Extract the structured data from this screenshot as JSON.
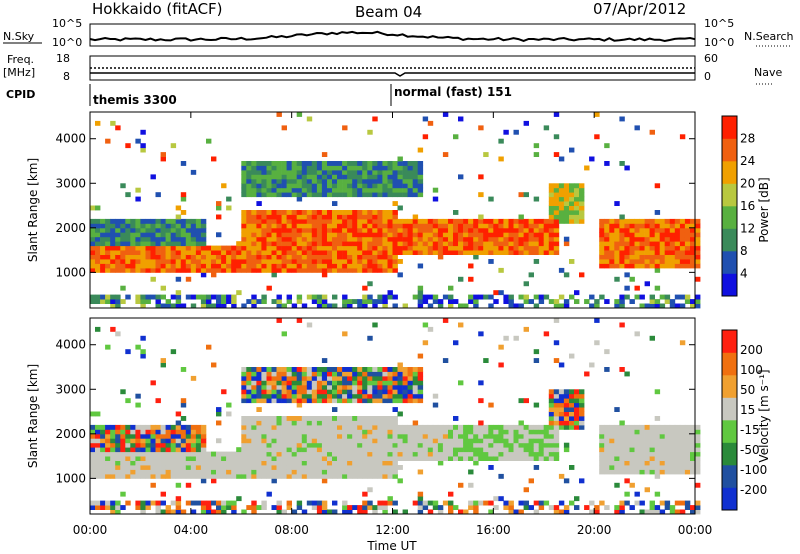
{
  "header": {
    "station": "Hokkaido (fitACF)",
    "beam": "Beam 04",
    "date": "07/Apr/2012"
  },
  "top_panels": {
    "nsky": {
      "label": "N.Sky",
      "ticks": [
        "10^5",
        "10^0"
      ],
      "right_ticks": [
        "10^5",
        "10^0"
      ],
      "right_label": "N.Search"
    },
    "freq": {
      "label_line1": "Freq.",
      "label_line2": "[MHz]",
      "ticks": [
        "18",
        "8"
      ],
      "right_ticks": [
        "60",
        "0"
      ],
      "right_label": "Nave"
    },
    "cpid": {
      "label": "CPID",
      "modes": [
        "themis 3300",
        "normal (fast) 151"
      ]
    }
  },
  "colors": {
    "power": [
      "#1010e0",
      "#2050b0",
      "#3a8a5a",
      "#58b040",
      "#b8c840",
      "#f0a000",
      "#f06010",
      "#ff2000"
    ],
    "velocity": [
      "#1030d0",
      "#2050a0",
      "#2a8a3a",
      "#60c840",
      "#c8c8c0",
      "#f0a030",
      "#f07010",
      "#ff2010"
    ]
  },
  "chart_data": [
    {
      "type": "heatmap",
      "panel": "power",
      "ylabel": "Slant Range [km]",
      "ylim": [
        200,
        4600
      ],
      "yticks": [
        "1000",
        "2000",
        "3000",
        "4000"
      ],
      "xlim_hours": [
        0,
        24
      ],
      "colorbar_label": "Power [dB]",
      "colorbar_ticks": [
        "28",
        "24",
        "20",
        "16",
        "12",
        "8",
        "4"
      ],
      "bands": [
        {
          "t0": 0,
          "t1": 6,
          "r0": 900,
          "r1": 1600,
          "level": "strong"
        },
        {
          "t0": 0,
          "t1": 4.5,
          "r0": 1600,
          "r1": 2200,
          "level": "weak"
        },
        {
          "t0": 6,
          "t1": 12,
          "r0": 900,
          "r1": 2400,
          "level": "strong"
        },
        {
          "t0": 12,
          "t1": 18.5,
          "r0": 1300,
          "r1": 2200,
          "level": "strong"
        },
        {
          "t0": 20,
          "t1": 24,
          "r0": 1000,
          "r1": 2200,
          "level": "strong"
        }
      ]
    },
    {
      "type": "heatmap",
      "panel": "velocity",
      "ylabel": "Slant Range [km]",
      "ylim": [
        200,
        4600
      ],
      "yticks": [
        "1000",
        "2000",
        "3000",
        "4000"
      ],
      "xlim_hours": [
        0,
        24
      ],
      "colorbar_label": "Velocity [m s⁻¹]",
      "colorbar_ticks": [
        "200",
        "100",
        "50",
        "15",
        "-15",
        "-50",
        "-100",
        "-200"
      ],
      "xticks": [
        "00:00",
        "04:00",
        "08:00",
        "12:00",
        "16:00",
        "20:00",
        "00:00"
      ],
      "xlabel": "Time UT"
    }
  ]
}
